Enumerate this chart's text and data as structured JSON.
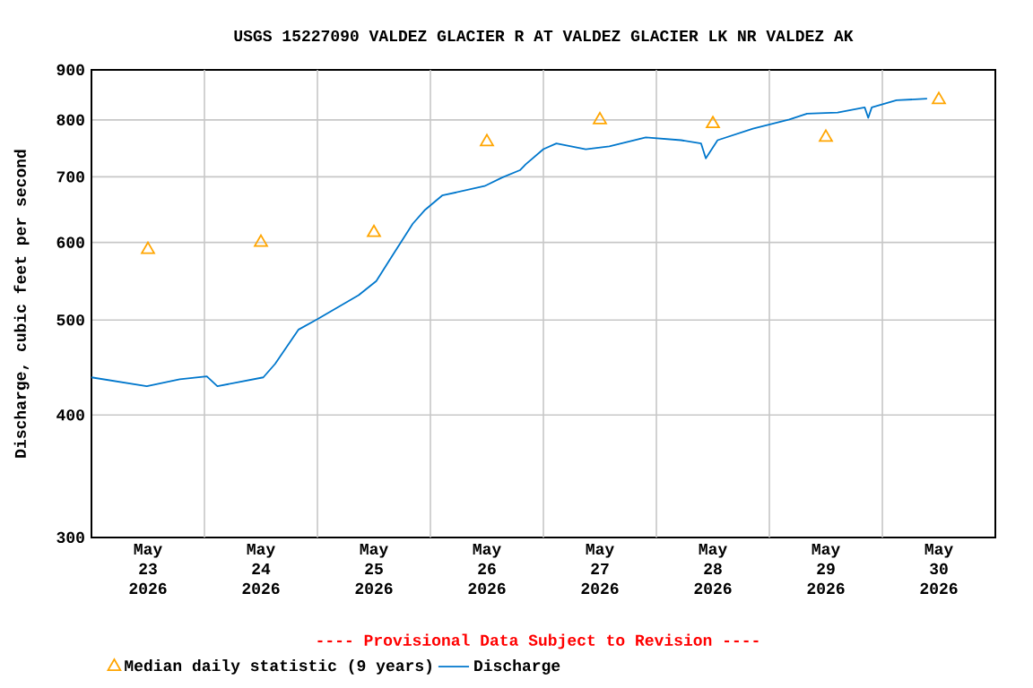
{
  "chart_data": {
    "type": "line",
    "title": "USGS 15227090 VALDEZ GLACIER R AT VALDEZ GLACIER LK NR VALDEZ AK",
    "ylabel": "Discharge, cubic feet per second",
    "annotations": [
      "---- Provisional Data Subject to Revision ----"
    ],
    "log": "y",
    "grid": true,
    "legend": "bottom",
    "xlim": [
      "2026-05-23T00:00",
      "2026-05-31T00:00"
    ],
    "xticks": [
      {
        "value": "2026-05-23T12:00",
        "label": "May 23 2026"
      },
      {
        "value": "2026-05-24T12:00",
        "label": "May 24 2026"
      },
      {
        "value": "2026-05-25T12:00",
        "label": "May 25 2026"
      },
      {
        "value": "2026-05-26T12:00",
        "label": "May 26 2026"
      },
      {
        "value": "2026-05-27T12:00",
        "label": "May 27 2026"
      },
      {
        "value": "2026-05-28T12:00",
        "label": "May 28 2026"
      },
      {
        "value": "2026-05-29T12:00",
        "label": "May 29 2026"
      },
      {
        "value": "2026-05-30T12:00",
        "label": "May 30 2026"
      },
      {
        "value": "2026-05-24T00:00",
        "label": null
      },
      {
        "value": "2026-05-25T00:00",
        "label": null
      },
      {
        "value": "2026-05-26T00:00",
        "label": null
      },
      {
        "value": "2026-05-27T00:00",
        "label": null
      },
      {
        "value": "2026-05-28T00:00",
        "label": null
      },
      {
        "value": "2026-05-29T00:00",
        "label": null
      },
      {
        "value": "2026-05-30T00:00",
        "label": null
      }
    ],
    "ylim": [
      300,
      900
    ],
    "yticks": [
      300,
      400,
      500,
      600,
      700,
      800,
      900
    ],
    "series": [
      {
        "name": "Median daily statistic (9 years)",
        "type": "scatter",
        "marker": "triangle",
        "color": "#ffa500",
        "x": [
          "2026-05-23T12:00",
          "2026-05-24T12:00",
          "2026-05-25T12:00",
          "2026-05-26T12:00",
          "2026-05-27T12:00",
          "2026-05-28T12:00",
          "2026-05-29T12:00",
          "2026-05-30T12:00"
        ],
        "values": [
          590,
          600,
          614,
          760,
          800,
          793,
          768,
          839
        ]
      },
      {
        "name": "Discharge",
        "marker": "none",
        "color": "#0077cc",
        "x": [
          "2026-05-23T00:00",
          "2026-05-23T11:45",
          "2026-05-23T18:45",
          "2026-05-24T00:30",
          "2026-05-24T02:45",
          "2026-05-24T12:30",
          "2026-05-24T15:00",
          "2026-05-24T20:00",
          "2026-05-25T00:00",
          "2026-05-25T08:45",
          "2026-05-25T12:30",
          "2026-05-25T15:45",
          "2026-05-25T20:15",
          "2026-05-25T22:45",
          "2026-05-26T02:30",
          "2026-05-26T11:30",
          "2026-05-26T15:15",
          "2026-05-26T19:00",
          "2026-05-26T20:15",
          "2026-05-27T00:00",
          "2026-05-27T02:45",
          "2026-05-27T09:00",
          "2026-05-27T14:00",
          "2026-05-27T21:45",
          "2026-05-28T05:15",
          "2026-05-28T09:30",
          "2026-05-28T10:30",
          "2026-05-28T13:00",
          "2026-05-28T20:30",
          "2026-05-29T04:15",
          "2026-05-29T08:00",
          "2026-05-29T14:30",
          "2026-05-29T20:15",
          "2026-05-29T21:00",
          "2026-05-29T21:45",
          "2026-05-30T03:00",
          "2026-05-30T09:30"
        ],
        "values": [
          437,
          428,
          435,
          438,
          428,
          437,
          451,
          489,
          501,
          530,
          548,
          580,
          627,
          647,
          670,
          685,
          699,
          711,
          721,
          747,
          757,
          747,
          752,
          768,
          763,
          757,
          731,
          763,
          784,
          801,
          812,
          814,
          824,
          804,
          824,
          838,
          841
        ]
      }
    ]
  }
}
